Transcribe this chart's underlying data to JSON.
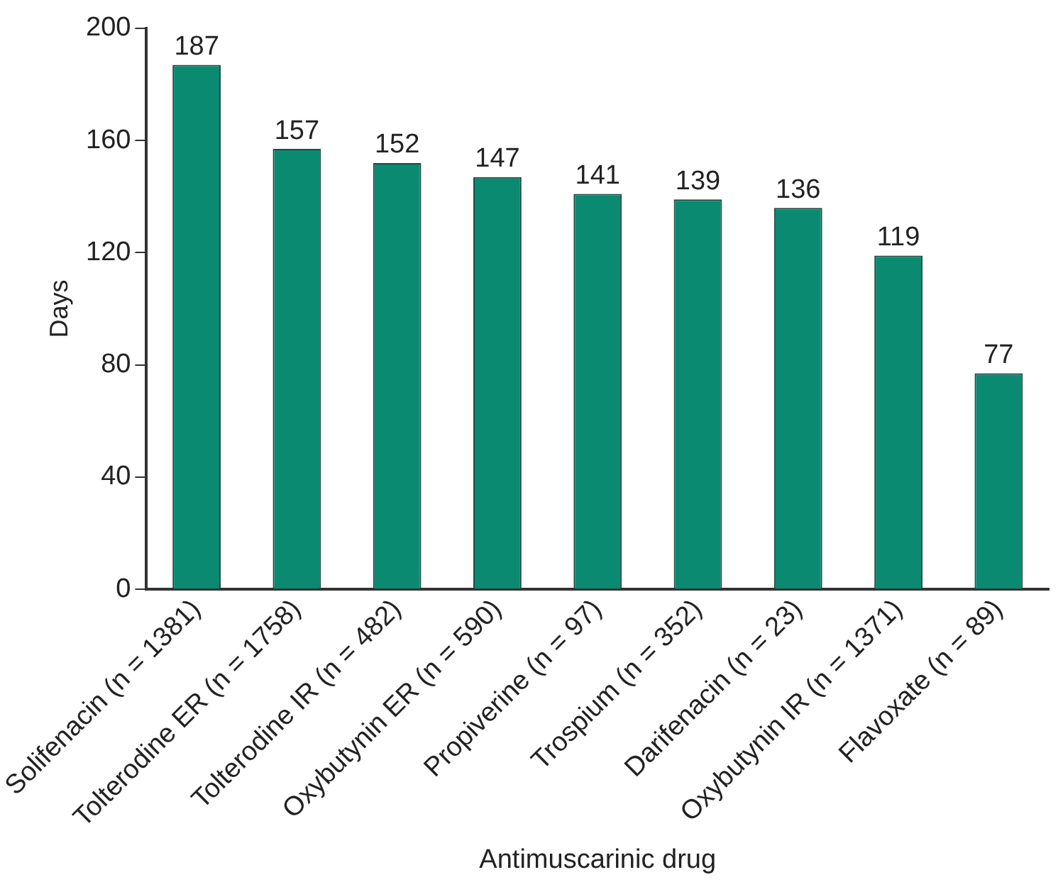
{
  "chart_data": {
    "type": "bar",
    "xlabel": "Antimuscarinic drug",
    "ylabel": "Days",
    "categories": [
      "Solifenacin (n = 1381)",
      "Tolterodine ER (n = 1758)",
      "Tolterodine IR (n = 482)",
      "Oxybutynin ER (n = 590)",
      "Propiverine (n = 97)",
      "Trospium (n = 352)",
      "Darifenacin (n = 23)",
      "Oxybutynin IR (n = 1371)",
      "Flavoxate (n = 89)"
    ],
    "values": [
      187,
      157,
      152,
      147,
      141,
      139,
      136,
      119,
      77
    ],
    "color": "#0b8a72",
    "ylim": [
      0,
      200
    ],
    "yticks": [
      0,
      40,
      80,
      120,
      160,
      200
    ],
    "grid": false,
    "data_labels": true,
    "legend": false
  }
}
